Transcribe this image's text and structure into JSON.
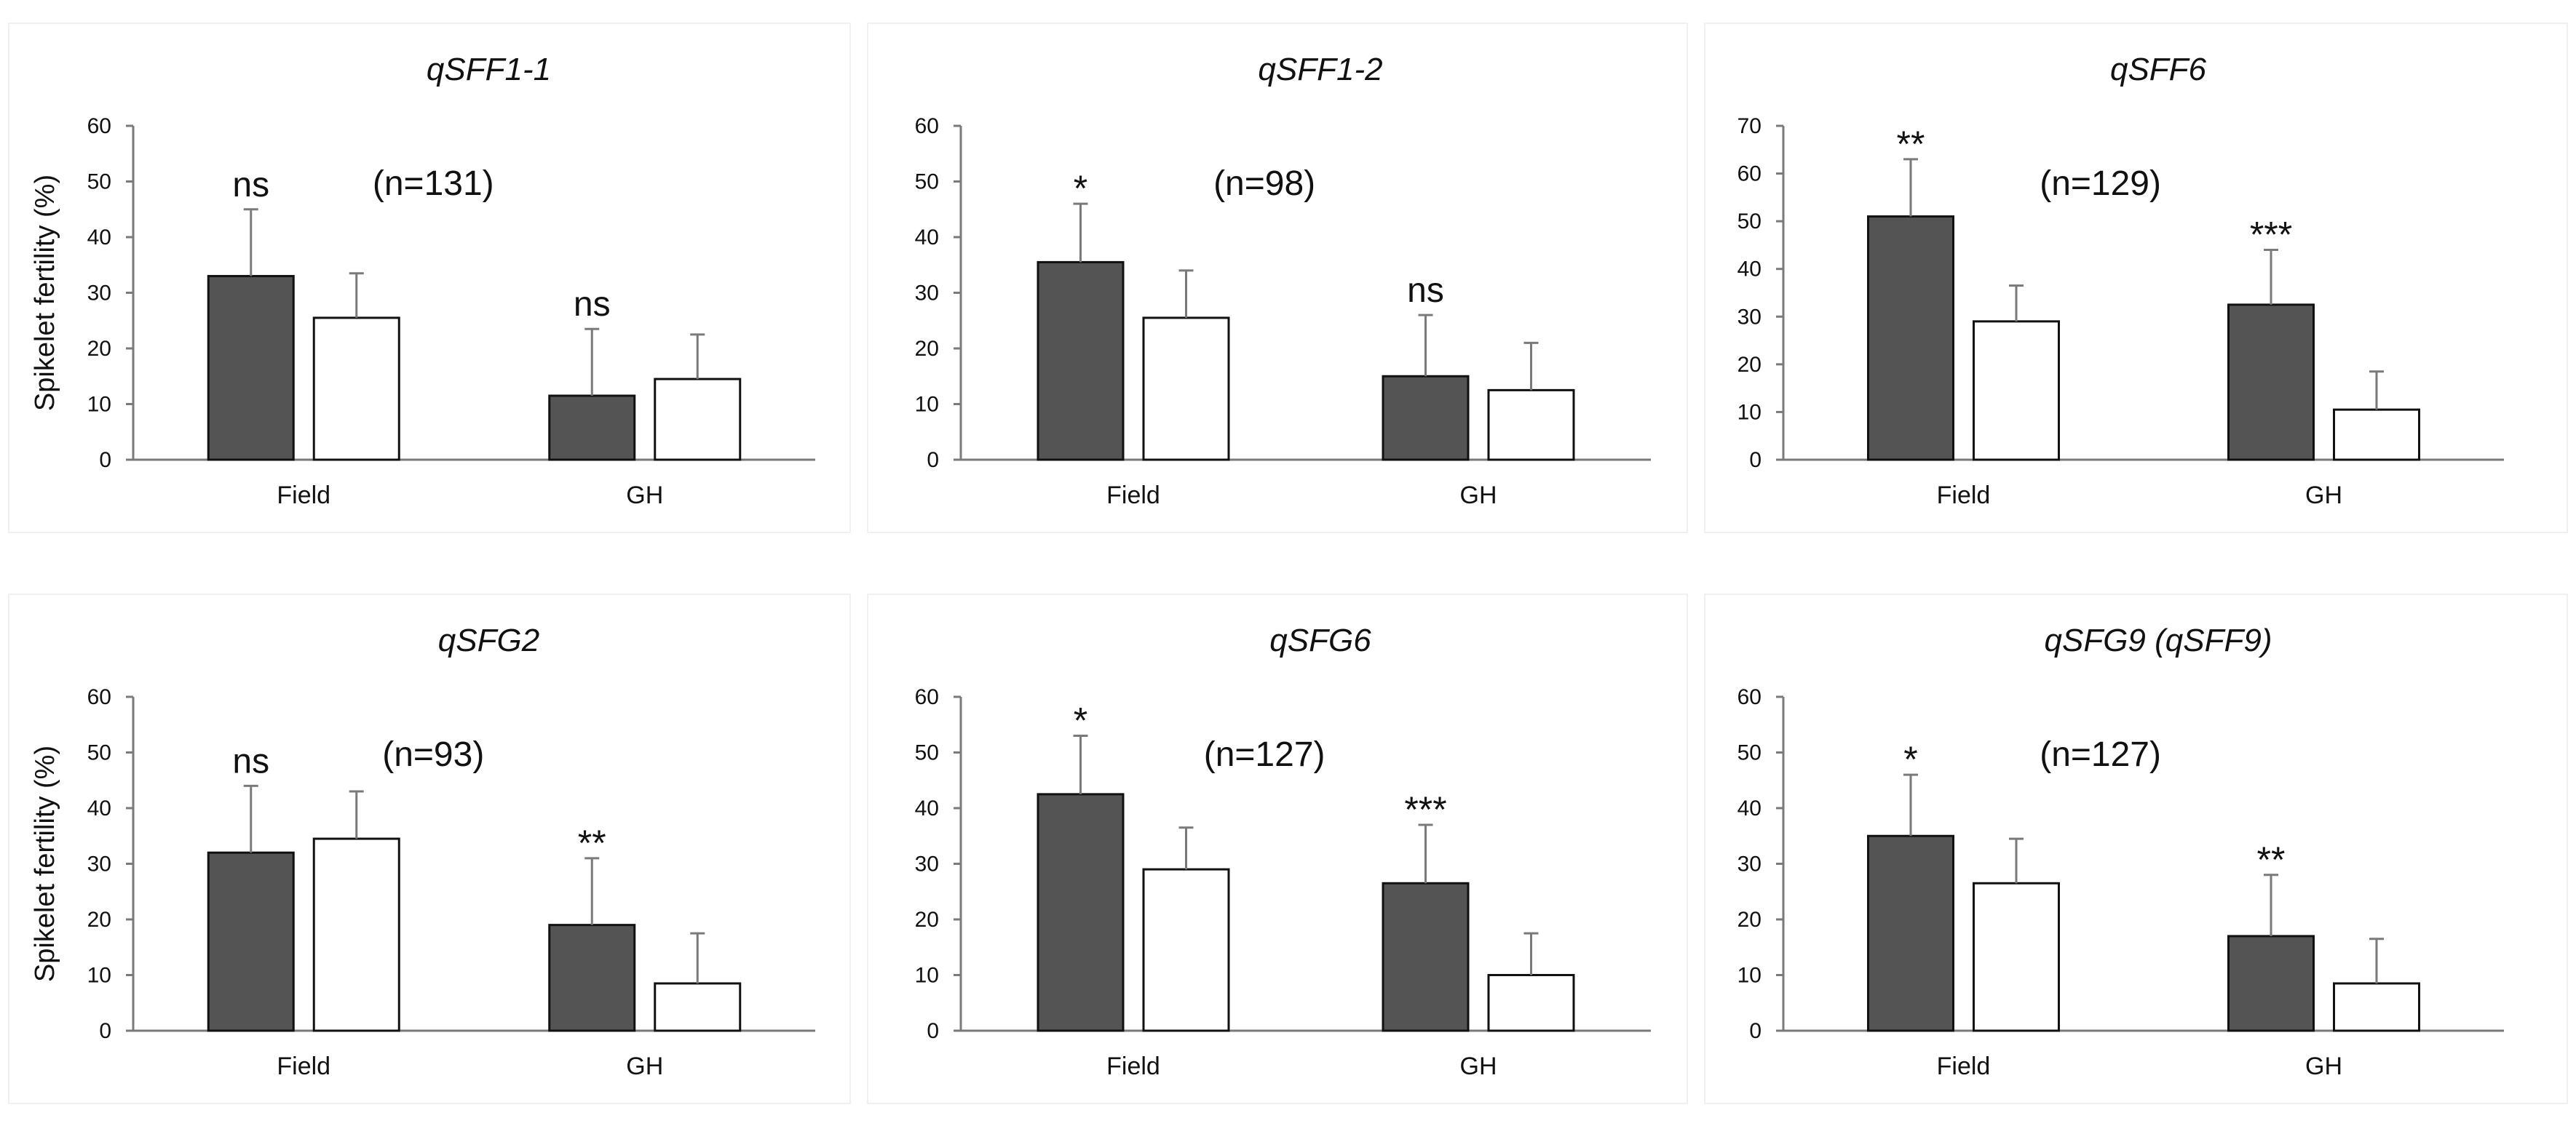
{
  "colors": {
    "dark_bar": "#545454",
    "light_bar": "#ffffff",
    "axis": "#7a7a7a",
    "bar_stroke": "#111111",
    "text": "#111111"
  },
  "chart_data": [
    {
      "type": "bar",
      "title": "qSFF1-1",
      "n_label": "(n=131)",
      "ylabel": "Spikelet fertility (%)",
      "categories": [
        "Field",
        "GH"
      ],
      "ylim": [
        0,
        60
      ],
      "yticks": [
        0,
        10,
        20,
        30,
        40,
        50,
        60
      ],
      "yticklabels": [
        "0",
        "10",
        "20",
        "30",
        "40",
        "50",
        "60"
      ],
      "series": [
        {
          "name": "dark",
          "values": [
            33,
            11.5
          ],
          "errors": [
            12,
            12
          ]
        },
        {
          "name": "white",
          "values": [
            25.5,
            14.5
          ],
          "errors": [
            8,
            8
          ]
        }
      ],
      "significance": [
        "ns",
        "ns"
      ]
    },
    {
      "type": "bar",
      "title": "qSFF1-2",
      "n_label": "(n=98)",
      "ylabel": "",
      "categories": [
        "Field",
        "GH"
      ],
      "ylim": [
        0,
        60
      ],
      "yticks": [
        0,
        10,
        20,
        30,
        40,
        50,
        60
      ],
      "yticklabels": [
        "0",
        "10",
        "20",
        "30",
        "40",
        "50",
        "60"
      ],
      "series": [
        {
          "name": "dark",
          "values": [
            35.5,
            15
          ],
          "errors": [
            10.5,
            11
          ]
        },
        {
          "name": "white",
          "values": [
            25.5,
            12.5
          ],
          "errors": [
            8.5,
            8.5
          ]
        }
      ],
      "significance": [
        "*",
        "ns"
      ]
    },
    {
      "type": "bar",
      "title": "qSFF6",
      "n_label": "(n=129)",
      "ylabel": "",
      "categories": [
        "Field",
        "GH"
      ],
      "ylim": [
        0,
        70
      ],
      "yticks": [
        0,
        10,
        20,
        30,
        40,
        50,
        60,
        70
      ],
      "yticklabels": [
        "0",
        "10",
        "20",
        "30",
        "40",
        "50",
        "60",
        "70"
      ],
      "series": [
        {
          "name": "dark",
          "values": [
            51,
            32.5
          ],
          "errors": [
            12,
            11.5
          ]
        },
        {
          "name": "white",
          "values": [
            29,
            10.5
          ],
          "errors": [
            7.5,
            8
          ]
        }
      ],
      "significance": [
        "**",
        "***"
      ]
    },
    {
      "type": "bar",
      "title": "qSFG2",
      "n_label": "(n=93)",
      "ylabel": "Spikelet fertility (%)",
      "categories": [
        "Field",
        "GH"
      ],
      "ylim": [
        0,
        60
      ],
      "yticks": [
        0,
        10,
        20,
        30,
        40,
        50,
        60
      ],
      "yticklabels": [
        "0",
        "10",
        "20",
        "30",
        "40",
        "50",
        "60"
      ],
      "series": [
        {
          "name": "dark",
          "values": [
            32,
            19
          ],
          "errors": [
            12,
            12
          ]
        },
        {
          "name": "white",
          "values": [
            34.5,
            8.5
          ],
          "errors": [
            8.5,
            9
          ]
        }
      ],
      "significance": [
        "ns",
        "**"
      ]
    },
    {
      "type": "bar",
      "title": "qSFG6",
      "n_label": "(n=127)",
      "ylabel": "",
      "categories": [
        "Field",
        "GH"
      ],
      "ylim": [
        0,
        60
      ],
      "yticks": [
        0,
        10,
        20,
        30,
        40,
        50,
        60
      ],
      "yticklabels": [
        "0",
        "10",
        "20",
        "30",
        "40",
        "50",
        "60"
      ],
      "series": [
        {
          "name": "dark",
          "values": [
            42.5,
            26.5
          ],
          "errors": [
            10.5,
            10.5
          ]
        },
        {
          "name": "white",
          "values": [
            29,
            10
          ],
          "errors": [
            7.5,
            7.5
          ]
        }
      ],
      "significance": [
        "*",
        "***"
      ]
    },
    {
      "type": "bar",
      "title": "qSFG9 (qSFF9)",
      "n_label": "(n=127)",
      "ylabel": "",
      "categories": [
        "Field",
        "GH"
      ],
      "ylim": [
        0,
        60
      ],
      "yticks": [
        0,
        10,
        20,
        30,
        40,
        50,
        60
      ],
      "yticklabels": [
        "0",
        "10",
        "20",
        "30",
        "40",
        "50",
        "60"
      ],
      "series": [
        {
          "name": "dark",
          "values": [
            35,
            17
          ],
          "errors": [
            11,
            11
          ]
        },
        {
          "name": "white",
          "values": [
            26.5,
            8.5
          ],
          "errors": [
            8,
            8
          ]
        }
      ],
      "significance": [
        "*",
        "**"
      ]
    }
  ]
}
